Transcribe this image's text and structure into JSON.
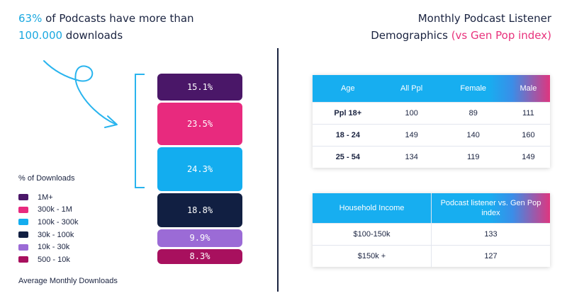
{
  "headline": {
    "pct": "63%",
    "text1": " of Podcasts have more than ",
    "downloads": "100.000",
    "text2": " downloads"
  },
  "colors": {
    "1M+": "#4a1768",
    "300k - 1M": "#e82a7e",
    "100k - 300k": "#13adef",
    "30k - 100k": "#111f42",
    "10k - 30k": "#9b6bd6",
    "500 - 10k": "#a8105e",
    "accent_blue": "#1aa8e0",
    "accent_pink": "#e8327c"
  },
  "chart_data": {
    "type": "bar",
    "subtype": "stacked-100",
    "legend_title": "% of Downloads",
    "xlabel": "Average Monthly Downloads",
    "categories": [
      "1M+",
      "300k - 1M",
      "100k - 300k",
      "30k - 100k",
      "10k - 30k",
      "500 - 10k"
    ],
    "values": [
      15.1,
      23.5,
      24.3,
      18.8,
      9.9,
      8.3
    ],
    "labels": [
      "15.1%",
      "23.5%",
      "24.3%",
      "18.8%",
      "9.9%",
      "8.3%"
    ],
    "bracket_covers": [
      "1M+",
      "300k - 1M",
      "100k - 300k"
    ]
  },
  "right_title": {
    "line1": "Monthly Podcast Listener",
    "line2": "Demographics ",
    "highlight": "(vs Gen Pop index)"
  },
  "table_age": {
    "headers": [
      "Age",
      "All Ppl",
      "Female",
      "Male"
    ],
    "rows": [
      [
        "Ppl 18+",
        "100",
        "89",
        "111"
      ],
      [
        "18 - 24",
        "149",
        "140",
        "160"
      ],
      [
        "25 - 54",
        "134",
        "119",
        "149"
      ]
    ]
  },
  "table_income": {
    "headers": [
      "Household Income",
      "Podcast listener vs. Gen Pop index"
    ],
    "rows": [
      [
        "$100-150k",
        "133"
      ],
      [
        "$150k +",
        "127"
      ]
    ]
  }
}
